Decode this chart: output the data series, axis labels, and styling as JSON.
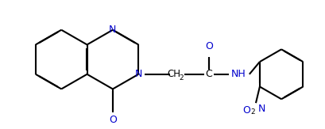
{
  "bg_color": "#ffffff",
  "bond_color": "#000000",
  "heteroatom_color": "#0000cd",
  "lw": 1.5,
  "dbo": 0.012,
  "figsize": [
    4.09,
    1.63
  ],
  "dpi": 100,
  "xlim": [
    0,
    409
  ],
  "ylim": [
    0,
    163
  ]
}
